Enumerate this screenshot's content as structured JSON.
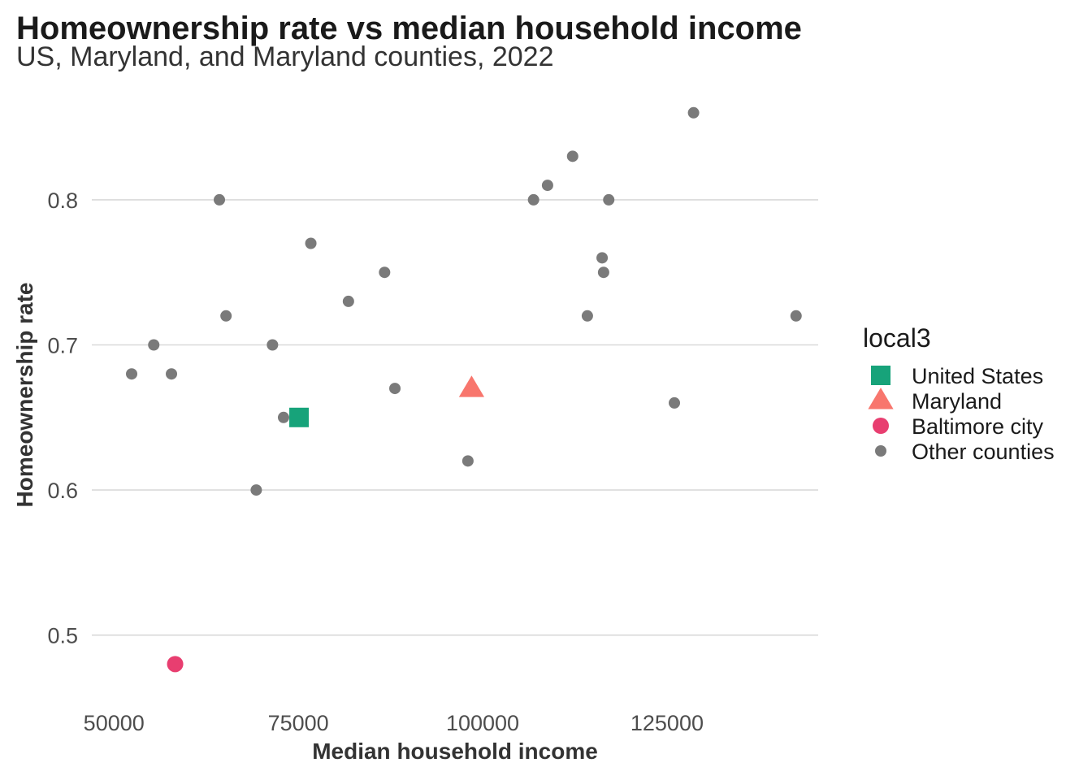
{
  "chart_data": {
    "type": "scatter",
    "title": "Homeownership rate vs median household income",
    "subtitle": "US, Maryland, and Maryland counties, 2022",
    "xlabel": "Median household income",
    "ylabel": "Homeownership rate",
    "xlim": [
      47000,
      145500
    ],
    "ylim": [
      0.455,
      0.875
    ],
    "x_ticks": [
      50000,
      75000,
      100000,
      125000
    ],
    "x_tick_labels": [
      "50000",
      "75000",
      "100000",
      "125000"
    ],
    "y_ticks": [
      0.5,
      0.6,
      0.7,
      0.8
    ],
    "y_tick_labels": [
      "0.5",
      "0.6",
      "0.7",
      "0.8"
    ],
    "grid": "horizontal major only",
    "legend": {
      "title": "local3",
      "placement": "right",
      "entries": [
        {
          "label": "United States",
          "shape": "square",
          "color": "#17a37a"
        },
        {
          "label": "Maryland",
          "shape": "triangle",
          "color": "#f8766d"
        },
        {
          "label": "Baltimore city",
          "shape": "circle",
          "color": "#e83e70"
        },
        {
          "label": "Other counties",
          "shape": "circle",
          "color": "#7a7a7a"
        }
      ]
    },
    "series": [
      {
        "name": "United States",
        "shape": "square",
        "color": "#17a37a",
        "points": [
          {
            "x": 75100,
            "y": 0.65
          }
        ]
      },
      {
        "name": "Maryland",
        "shape": "triangle",
        "color": "#f8766d",
        "points": [
          {
            "x": 98500,
            "y": 0.67
          }
        ]
      },
      {
        "name": "Baltimore city",
        "shape": "circle",
        "color": "#e83e70",
        "points": [
          {
            "x": 58300,
            "y": 0.48
          }
        ]
      },
      {
        "name": "Other counties",
        "shape": "circle",
        "color": "#7a7a7a",
        "points": [
          {
            "x": 52400,
            "y": 0.68
          },
          {
            "x": 55400,
            "y": 0.7
          },
          {
            "x": 57800,
            "y": 0.68
          },
          {
            "x": 64300,
            "y": 0.8
          },
          {
            "x": 65200,
            "y": 0.72
          },
          {
            "x": 69300,
            "y": 0.6
          },
          {
            "x": 71500,
            "y": 0.7
          },
          {
            "x": 73000,
            "y": 0.65
          },
          {
            "x": 76700,
            "y": 0.77
          },
          {
            "x": 81800,
            "y": 0.73
          },
          {
            "x": 86700,
            "y": 0.75
          },
          {
            "x": 88100,
            "y": 0.67
          },
          {
            "x": 98000,
            "y": 0.62
          },
          {
            "x": 106900,
            "y": 0.8
          },
          {
            "x": 108800,
            "y": 0.81
          },
          {
            "x": 112200,
            "y": 0.83
          },
          {
            "x": 114200,
            "y": 0.72
          },
          {
            "x": 116200,
            "y": 0.76
          },
          {
            "x": 116400,
            "y": 0.75
          },
          {
            "x": 117100,
            "y": 0.8
          },
          {
            "x": 126000,
            "y": 0.66
          },
          {
            "x": 128600,
            "y": 0.86
          },
          {
            "x": 142500,
            "y": 0.72
          }
        ]
      }
    ]
  }
}
